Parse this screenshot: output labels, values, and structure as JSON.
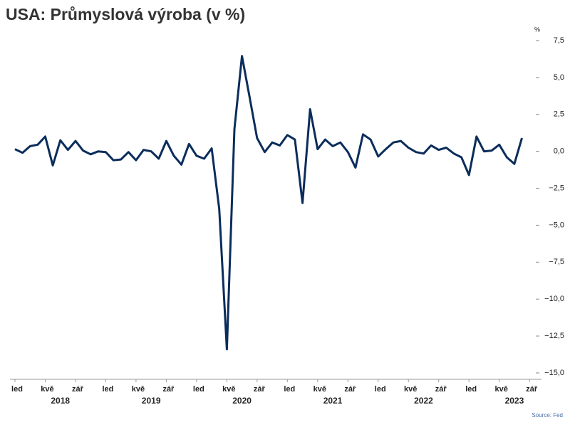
{
  "chart_data": {
    "type": "line",
    "title": "USA: Průmyslová výroba (v %)",
    "unit_label": "%",
    "source": "Source: Fed",
    "categories": [
      "led",
      null,
      null,
      null,
      "kvě",
      null,
      null,
      null,
      "zář",
      null,
      null,
      null,
      "led",
      null,
      null,
      null,
      "kvě",
      null,
      null,
      null,
      "zář",
      null,
      null,
      null,
      "led",
      null,
      null,
      null,
      "kvě",
      null,
      null,
      null,
      "zář",
      null,
      null,
      null,
      "led",
      null,
      null,
      null,
      "kvě",
      null,
      null,
      null,
      "zář",
      null,
      null,
      null,
      "led",
      null,
      null,
      null,
      "kvě",
      null,
      null,
      null,
      "zář",
      null,
      null,
      null,
      "led",
      null,
      null,
      null,
      "kvě",
      null,
      null,
      null,
      "zář"
    ],
    "year_labels": [
      "2018",
      "2019",
      "2020",
      "2021",
      "2022",
      "2023"
    ],
    "values": [
      0.15,
      -0.1,
      0.35,
      0.45,
      1.0,
      -0.95,
      0.75,
      0.1,
      0.7,
      0.05,
      -0.2,
      0.0,
      -0.05,
      -0.6,
      -0.55,
      -0.05,
      -0.6,
      0.1,
      0.0,
      -0.5,
      0.7,
      -0.3,
      -0.9,
      0.5,
      -0.3,
      -0.5,
      0.2,
      -3.9,
      -13.4,
      1.5,
      6.45,
      3.7,
      0.9,
      -0.05,
      0.6,
      0.4,
      1.1,
      0.8,
      -3.5,
      2.85,
      0.15,
      0.8,
      0.35,
      0.6,
      -0.05,
      -1.1,
      1.15,
      0.8,
      -0.35,
      0.15,
      0.6,
      0.7,
      0.25,
      -0.05,
      -0.15,
      0.4,
      0.1,
      0.25,
      -0.15,
      -0.4,
      -1.6,
      1.0,
      0.0,
      0.05,
      0.45,
      -0.4,
      -0.85,
      0.9,
      null
    ],
    "color": "#0b2d5b",
    "ylim": [
      -15,
      7.5
    ],
    "yticks": [
      {
        "value": -15,
        "label": "−15,0"
      },
      {
        "value": -12.5,
        "label": "−12,5"
      },
      {
        "value": -10,
        "label": "−10,0"
      },
      {
        "value": -7.5,
        "label": "−7,5"
      },
      {
        "value": -5,
        "label": "−5,0"
      },
      {
        "value": -2.5,
        "label": "−2,5"
      },
      {
        "value": 0,
        "label": "0,0"
      },
      {
        "value": 2.5,
        "label": "2,5"
      },
      {
        "value": 5,
        "label": "5,0"
      },
      {
        "value": 7.5,
        "label": "7,5"
      }
    ]
  }
}
